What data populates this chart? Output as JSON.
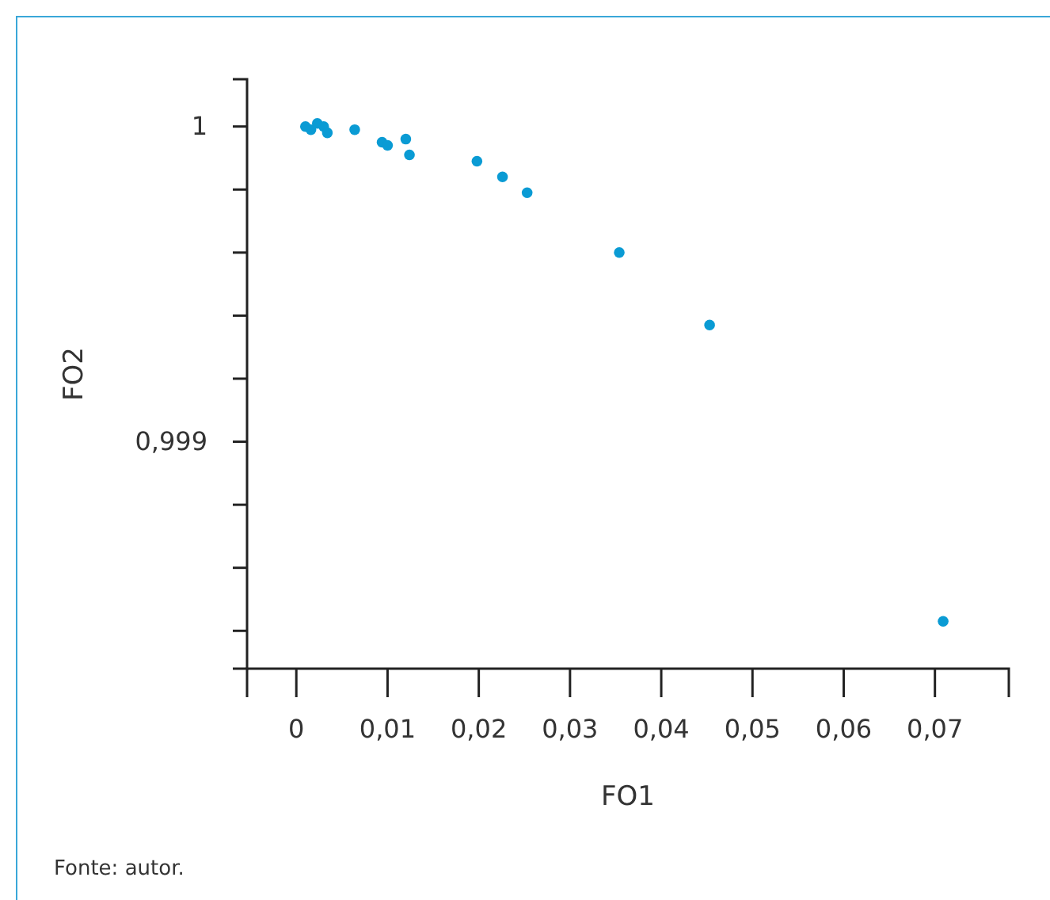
{
  "chart_data": {
    "type": "scatter",
    "xlabel": "FO1",
    "ylabel": "FO2",
    "annotations": [
      "Fonte: autor."
    ],
    "marker": "circle",
    "grid": false,
    "x": [
      0.001,
      0.0016,
      0.0023,
      0.003,
      0.0034,
      0.0064,
      0.0094,
      0.01,
      0.012,
      0.0124,
      0.0198,
      0.0226,
      0.0253,
      0.0354,
      0.0453,
      0.0709
    ],
    "series": [
      {
        "color": "#0a9bd4",
        "values": [
          1.0,
          0.99999,
          1.00001,
          1.0,
          0.99998,
          0.99999,
          0.99995,
          0.99994,
          0.99996,
          0.99991,
          0.99989,
          0.99984,
          0.99979,
          0.9996,
          0.99937,
          0.99843
        ]
      }
    ],
    "xlim": [
      -0.0054,
      0.0781
    ],
    "ylim": [
      0.99828,
      1.00015
    ],
    "xticks": [
      {
        "value": 0,
        "label": "0"
      },
      {
        "value": 0.01,
        "label": "0,01"
      },
      {
        "value": 0.02,
        "label": "0,02"
      },
      {
        "value": 0.03,
        "label": "0,03"
      },
      {
        "value": 0.04,
        "label": "0,04"
      },
      {
        "value": 0.05,
        "label": "0,05"
      },
      {
        "value": 0.06,
        "label": "0,06"
      },
      {
        "value": 0.07,
        "label": "0,07"
      }
    ],
    "yticks": [
      {
        "value": 1,
        "label": "1"
      },
      {
        "value": 0.9998,
        "label": null
      },
      {
        "value": 0.9996,
        "label": null
      },
      {
        "value": 0.9994,
        "label": null
      },
      {
        "value": 0.9992,
        "label": null
      },
      {
        "value": 0.999,
        "label": "0,999"
      },
      {
        "value": 0.9988,
        "label": null
      },
      {
        "value": 0.9986,
        "label": null
      },
      {
        "value": 0.9984,
        "label": null
      }
    ]
  }
}
